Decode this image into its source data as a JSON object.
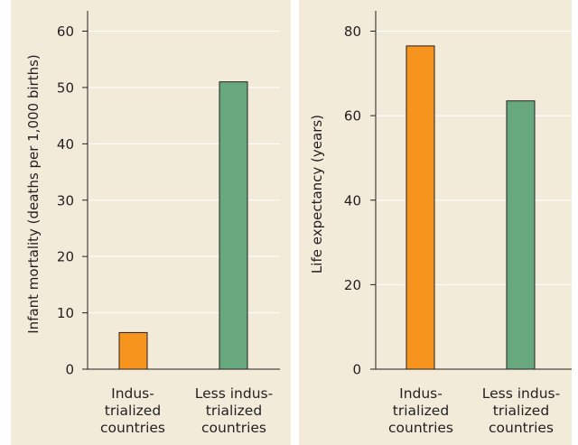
{
  "chart_data": [
    {
      "type": "bar",
      "categories": [
        [
          "Indus-",
          "trialized",
          "countries"
        ],
        [
          "Less indus-",
          "trialized",
          "countries"
        ]
      ],
      "values": [
        6.5,
        51
      ],
      "bar_colors": [
        "#f7941d",
        "#68a87f"
      ],
      "ylabel": "Infant mortality (deaths per 1,000 births)",
      "xlabel": "",
      "ylim": [
        0,
        60
      ],
      "yticks": [
        0,
        10,
        20,
        30,
        40,
        50,
        60
      ],
      "grid": true
    },
    {
      "type": "bar",
      "categories": [
        [
          "Indus-",
          "trialized",
          "countries"
        ],
        [
          "Less indus-",
          "trialized",
          "countries"
        ]
      ],
      "values": [
        76.5,
        63.5
      ],
      "bar_colors": [
        "#f7941d",
        "#68a87f"
      ],
      "ylabel": "Life expectancy (years)",
      "xlabel": "",
      "ylim": [
        0,
        80
      ],
      "yticks": [
        0,
        20,
        40,
        60,
        80
      ],
      "grid": true
    }
  ],
  "colors": {
    "panel_background": "#f3ebd9",
    "gridline": "#ffffff",
    "axis": "#231f20"
  }
}
